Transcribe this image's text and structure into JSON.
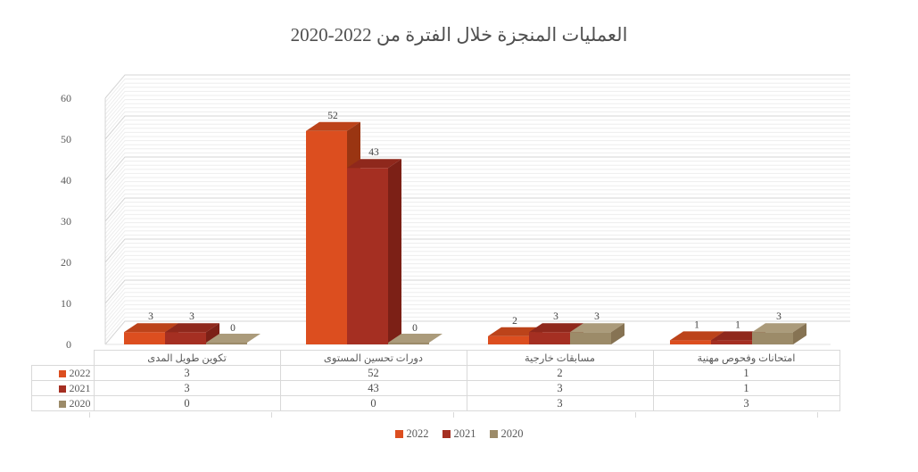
{
  "chart_data": {
    "type": "bar",
    "variant": "3d-clustered-column",
    "title": "العمليات المنجزة خلال الفترة من 2022-2020",
    "categories": [
      "تكوين طويل المدى",
      "دورات تحسين المستوى",
      "مسابقات خارجية",
      "امتحانات وفحوص مهنية"
    ],
    "series": [
      {
        "name": "2022",
        "values": [
          3,
          52,
          2,
          1
        ],
        "color_front": "#DC4E1F",
        "color_top": "#BC431A",
        "color_side": "#9A3512"
      },
      {
        "name": "2021",
        "values": [
          3,
          43,
          3,
          1
        ],
        "color_front": "#A52F22",
        "color_top": "#8F281C",
        "color_side": "#7C2016"
      },
      {
        "name": "2020",
        "values": [
          0,
          0,
          3,
          3
        ],
        "color_front": "#9C8B69",
        "color_top": "#AB9B7B",
        "color_side": "#867353"
      }
    ],
    "yticks": [
      0,
      10,
      20,
      30,
      40,
      50,
      60
    ],
    "ylim": [
      0,
      60
    ],
    "grid": true,
    "minor_grid": true,
    "data_labels_shown": true,
    "data_table_shown": true,
    "legend_position": "bottom"
  },
  "colors": {
    "title_text": "#4f4f4f",
    "axis_text": "#595959",
    "data_label_text": "#404040",
    "table_border": "#d9d9d9",
    "grid_major": "#d4d4d4",
    "grid_minor": "#ededed",
    "background": "#ffffff"
  }
}
